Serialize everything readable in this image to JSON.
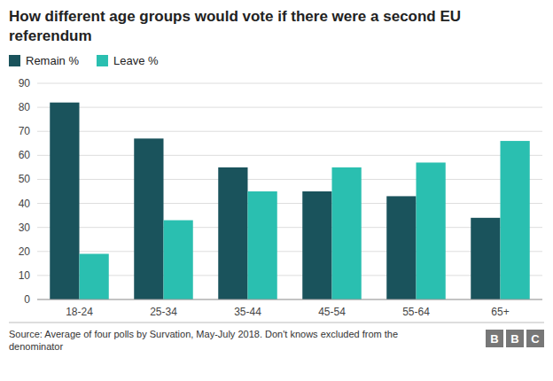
{
  "chart_data": {
    "type": "bar",
    "title": "How different age groups would vote if there were a second EU referendum",
    "categories": [
      "18-24",
      "25-34",
      "35-44",
      "45-54",
      "55-64",
      "65+"
    ],
    "series": [
      {
        "name": "Remain %",
        "color": "#1a535c",
        "values": [
          82,
          67,
          55,
          45,
          43,
          34
        ]
      },
      {
        "name": "Leave %",
        "color": "#2abfb0",
        "values": [
          19,
          33,
          45,
          55,
          57,
          66
        ]
      }
    ],
    "ylim": [
      0,
      90
    ],
    "yticks": [
      0,
      10,
      20,
      30,
      40,
      50,
      60,
      70,
      80,
      90
    ],
    "grid": true,
    "legend": "top",
    "source": "Source: Average of four polls by Survation, May-July 2018. Don't knows excluded from the\ndenominator",
    "logo": "BBC"
  }
}
